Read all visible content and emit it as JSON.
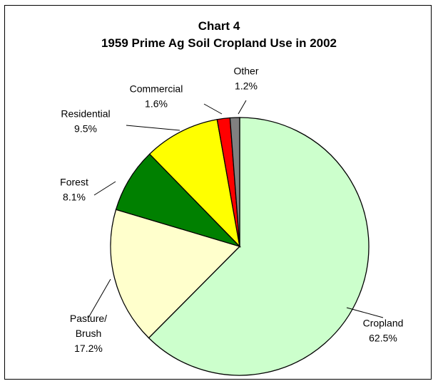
{
  "chart_data": {
    "type": "pie",
    "title": "Chart 4",
    "subtitle": "1959 Prime Ag Soil Cropland Use in 2002",
    "slices": [
      {
        "name": "Cropland",
        "name_lines": [
          "Cropland"
        ],
        "value": 62.5,
        "value_label": "62.5%",
        "color": "#ccffcc"
      },
      {
        "name": "Pasture/ Brush",
        "name_lines": [
          "Pasture/",
          "Brush"
        ],
        "value": 17.2,
        "value_label": "17.2%",
        "color": "#ffffcc"
      },
      {
        "name": "Forest",
        "name_lines": [
          "Forest"
        ],
        "value": 8.1,
        "value_label": "8.1%",
        "color": "#008000"
      },
      {
        "name": "Residential",
        "name_lines": [
          "Residential"
        ],
        "value": 9.5,
        "value_label": "9.5%",
        "color": "#ffff00"
      },
      {
        "name": "Commercial",
        "name_lines": [
          "Commercial"
        ],
        "value": 1.6,
        "value_label": "1.6%",
        "color": "#ff0000"
      },
      {
        "name": "Other",
        "name_lines": [
          "Other"
        ],
        "value": 1.2,
        "value_label": "1.2%",
        "color": "#808080"
      }
    ],
    "legend": "none",
    "data_labels": "category name and percentage, outside with leader lines"
  }
}
